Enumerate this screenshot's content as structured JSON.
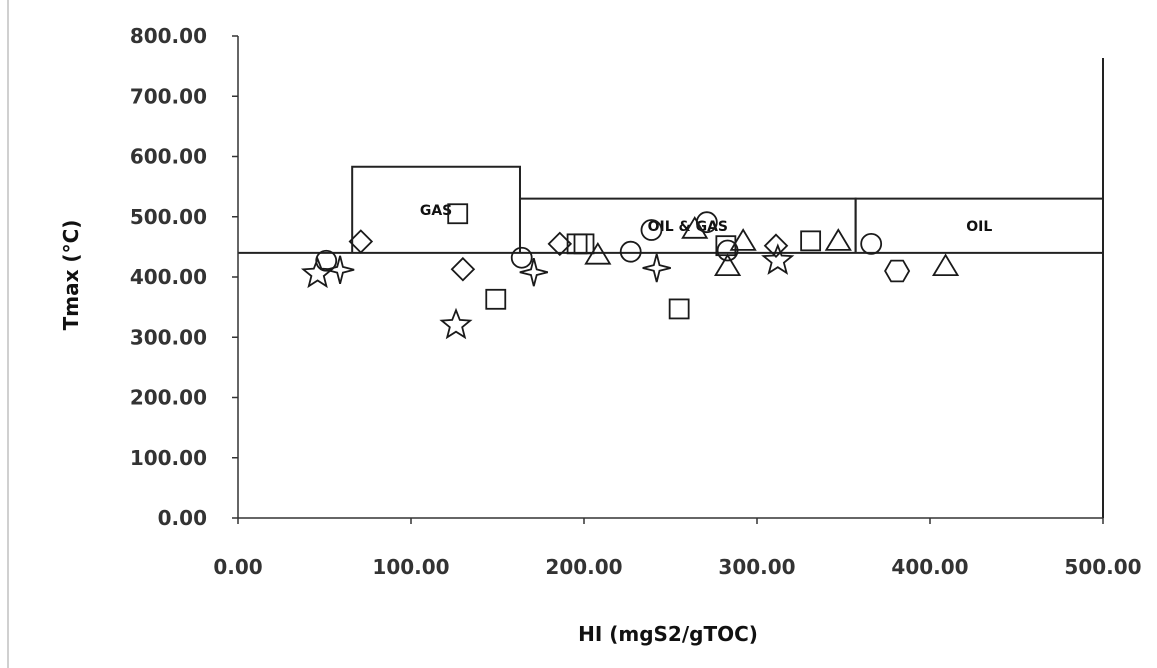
{
  "chart_data": {
    "type": "scatter",
    "title": "",
    "xlabel": "HI (mgS2/gTOC)",
    "ylabel": "Tmax (°C)",
    "xlim": [
      0,
      500
    ],
    "ylim": [
      0,
      800
    ],
    "x_ticks": [
      "0.00",
      "100.00",
      "200.00",
      "300.00",
      "400.00",
      "500.00"
    ],
    "y_ticks": [
      "0.00",
      "100.00",
      "200.00",
      "300.00",
      "400.00",
      "500.00",
      "600.00",
      "700.00",
      "800.00"
    ],
    "grid": false,
    "legend": "none",
    "reference_line_y": 440,
    "zones": [
      {
        "label": "GAS",
        "x0": 66,
        "x1": 163,
        "y_top": 583
      },
      {
        "label": "OIL & GAS",
        "x0": 163,
        "x1": 357,
        "y_top": 530
      },
      {
        "label": "OIL",
        "x0": 357,
        "x1": 500,
        "y_top": 530
      }
    ],
    "series": [
      {
        "marker": "square",
        "points": [
          [
            127,
            505
          ],
          [
            149,
            363
          ],
          [
            196,
            455
          ],
          [
            200,
            455
          ],
          [
            255,
            347
          ],
          [
            282,
            452
          ],
          [
            331,
            460
          ]
        ]
      },
      {
        "marker": "diamond",
        "points": [
          [
            71,
            459
          ],
          [
            130,
            413
          ],
          [
            186,
            455
          ],
          [
            311,
            452
          ]
        ]
      },
      {
        "marker": "triangle",
        "points": [
          [
            208,
            437
          ],
          [
            264,
            480
          ],
          [
            283,
            418
          ],
          [
            292,
            460
          ],
          [
            347,
            460
          ],
          [
            409,
            418
          ]
        ]
      },
      {
        "marker": "circle",
        "points": [
          [
            51,
            427
          ],
          [
            164,
            432
          ],
          [
            227,
            442
          ],
          [
            239,
            478
          ],
          [
            271,
            491
          ],
          [
            283,
            444
          ],
          [
            366,
            455
          ]
        ]
      },
      {
        "marker": "hexagon",
        "points": [
          [
            381,
            410
          ]
        ]
      },
      {
        "marker": "star5",
        "points": [
          [
            46,
            405
          ],
          [
            126,
            320
          ],
          [
            312,
            427
          ]
        ]
      },
      {
        "marker": "star4",
        "points": [
          [
            59,
            412
          ],
          [
            171,
            408
          ],
          [
            242,
            415
          ]
        ]
      }
    ]
  }
}
